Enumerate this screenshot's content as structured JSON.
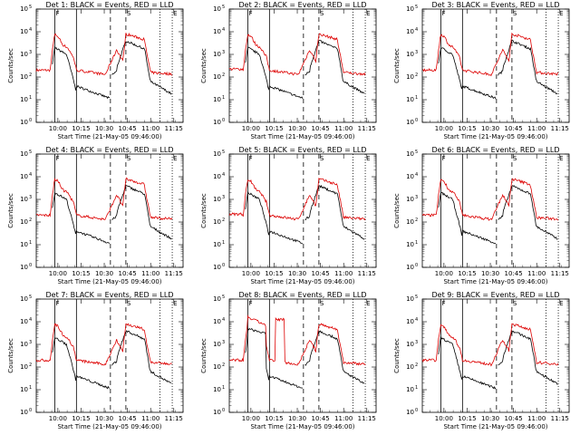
{
  "chart_data": {
    "type": "line",
    "panels": [
      {
        "title": "Det 1: BLACK = Events, RED = LLD",
        "variant": 1
      },
      {
        "title": "Det 2: BLACK = Events, RED = LLD",
        "variant": 2
      },
      {
        "title": "Det 3: BLACK = Events, RED = LLD",
        "variant": 1
      },
      {
        "title": "Det 4: BLACK = Events, RED = LLD",
        "variant": 1
      },
      {
        "title": "Det 5: BLACK = Events, RED = LLD",
        "variant": 2
      },
      {
        "title": "Det 6: BLACK = Events, RED = LLD",
        "variant": 1
      },
      {
        "title": "Det 7: BLACK = Events, RED = LLD",
        "variant": 1
      },
      {
        "title": "Det 8: BLACK = Events, RED = LLD",
        "variant": 3
      },
      {
        "title": "Det 9: BLACK = Events, RED = LLD",
        "variant": 1
      }
    ],
    "xlabel": "Start Time (21-May-05 09:46:00)",
    "ylabel": "Counts/sec",
    "x_ticks": [
      "10:00",
      "10:15",
      "10:30",
      "10:45",
      "11:00",
      "11:15"
    ],
    "x_tick_minutes": [
      14,
      29,
      44,
      59,
      74,
      89
    ],
    "xlim_minutes": [
      0,
      95
    ],
    "y_scale": "log",
    "y_tick_exponents": [
      0,
      1,
      2,
      3,
      4,
      5
    ],
    "ylim": [
      1,
      100000
    ],
    "markers": {
      "solid": [
        {
          "minute": 12,
          "label": "F"
        },
        {
          "minute": 26,
          "label": ""
        }
      ],
      "dashed": [
        {
          "minute": 48,
          "label": ""
        },
        {
          "minute": 58,
          "label": "S"
        }
      ],
      "dotted": [
        {
          "minute": 80,
          "label": ""
        },
        {
          "minute": 88,
          "label": "E"
        }
      ]
    },
    "series": [
      {
        "name": "BLACK = Events",
        "color": "#000000"
      },
      {
        "name": "RED = LLD",
        "color": "#dd0000"
      }
    ]
  }
}
